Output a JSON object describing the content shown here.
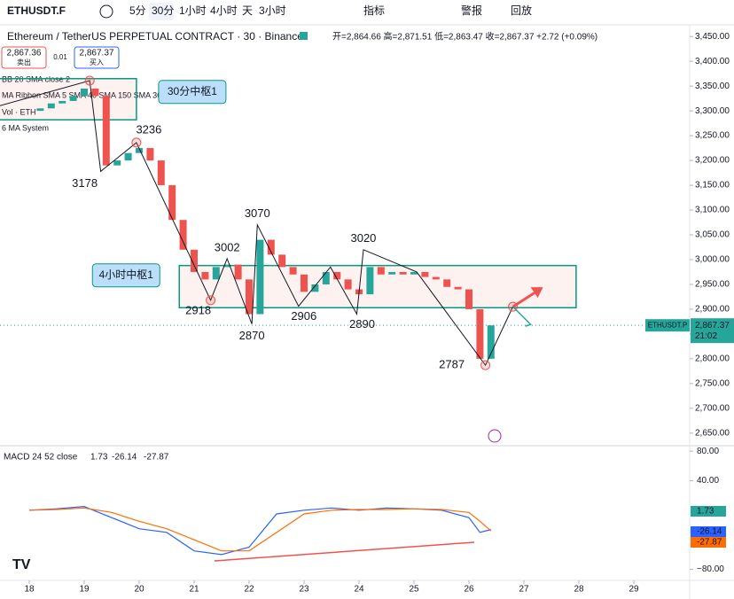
{
  "toolbar": {
    "symbol": "ETHUSDT.F",
    "intervals": [
      "5分",
      "30分",
      "1小时",
      "4小时",
      "天",
      "3小时"
    ],
    "indicators": "指标",
    "alert": "警报",
    "replay": "回放"
  },
  "legend": {
    "name": "Ethereum / TetherUS PERPETUAL CONTRACT · 30 · Binance",
    "ohlc": "开=2,864.66 高=2,871.51 低=2,863.47 收=2,867.37 +2.72 (+0.09%)",
    "sell_price": "2,867.36",
    "sell": "卖出",
    "spread": "0.01",
    "buy_price": "2,867.37",
    "buy": "买入",
    "studies": [
      "BB 20 SMA close 2",
      "MA Ribbon SMA 5 SMA 40 SMA 150 SMA 360",
      "Vol · ETH",
      "6 MA System"
    ]
  },
  "chart_data": {
    "type": "candlestick",
    "x": [
      18.0,
      18.2,
      18.4,
      18.6,
      18.8,
      19.0,
      19.2,
      19.4,
      19.6,
      19.8,
      20.0,
      20.2,
      20.4,
      20.6,
      20.8,
      21.0,
      21.2,
      21.4,
      21.6,
      21.8,
      22.0,
      22.2,
      22.4,
      22.6,
      22.8,
      23.0,
      23.2,
      23.4,
      23.6,
      23.8,
      24.0,
      24.2,
      24.4,
      24.6,
      24.8,
      25.0,
      25.2,
      25.4,
      25.6,
      25.8,
      26.0,
      26.2,
      26.4
    ],
    "close": [
      3300,
      3305,
      3315,
      3320,
      3330,
      3345,
      3330,
      3190,
      3200,
      3215,
      3225,
      3200,
      3150,
      3080,
      3020,
      2975,
      2960,
      2985,
      2990,
      2960,
      2890,
      3040,
      3010,
      2985,
      2970,
      2935,
      2950,
      2975,
      2960,
      2940,
      2930,
      2985,
      2970,
      2975,
      2970,
      2975,
      2965,
      2960,
      2945,
      2940,
      2900,
      2800,
      2867.37
    ],
    "up_color": "#26a69a",
    "down_color": "#ef5350",
    "ylim": [
      2630,
      3470
    ],
    "yticks": [
      {
        "value": 3450,
        "label": "3,450.00"
      },
      {
        "value": 3400,
        "label": "3,400.00"
      },
      {
        "value": 3350,
        "label": "3,350.00"
      },
      {
        "value": 3300,
        "label": "3,300.00"
      },
      {
        "value": 3250,
        "label": "3,250.00"
      },
      {
        "value": 3200,
        "label": "3,200.00"
      },
      {
        "value": 3150,
        "label": "3,150.00"
      },
      {
        "value": 3100,
        "label": "3,100.00"
      },
      {
        "value": 3050,
        "label": "3,050.00"
      },
      {
        "value": 3000,
        "label": "3,000.00"
      },
      {
        "value": 2950,
        "label": "2,950.00"
      },
      {
        "value": 2900,
        "label": "2,900.00"
      },
      {
        "value": 2850,
        "label": "2,850.00"
      },
      {
        "value": 2800,
        "label": "2,800.00"
      },
      {
        "value": 2750,
        "label": "2,750.00"
      },
      {
        "value": 2700,
        "label": "2,700.00"
      },
      {
        "value": 2650,
        "label": "2,650.00"
      }
    ],
    "xticks": [
      18,
      19,
      20,
      21,
      22,
      23,
      24,
      25,
      26,
      27,
      28,
      29
    ],
    "last_price": {
      "symbol": "ETHUSDT.P",
      "value": 2867.37,
      "label": "2,867.37",
      "time": "21:02"
    },
    "zigzag": {
      "x": [
        17.45,
        19.1,
        19.3,
        19.95,
        21.3,
        21.6,
        22.05,
        22.15,
        22.9,
        23.48,
        23.96,
        24.08,
        25.05,
        26.3,
        26.8
      ],
      "values": [
        3310,
        3361,
        3178,
        3236,
        2918,
        3002,
        2870,
        3070,
        2906,
        2985,
        2890,
        3020,
        2975,
        2787,
        2905
      ]
    },
    "zones": [
      {
        "label": "30分中枢1",
        "x": [
          17.45,
          19.95
        ],
        "y": [
          3282,
          3365
        ]
      },
      {
        "label": "4小时中枢1",
        "x": [
          20.73,
          27.95
        ],
        "y": [
          2903,
          2988
        ]
      }
    ],
    "macd": {
      "title": "MACD 24 52 close",
      "hist_label": "1.73",
      "macd_label": "-26.14",
      "signal_label": "-27.87",
      "ylim": [
        -95,
        85
      ],
      "yticks": [
        {
          "value": 80,
          "label": "80.00"
        },
        {
          "value": 40,
          "label": "40.00"
        },
        {
          "value": -80,
          "label": "−80.00"
        }
      ],
      "x": [
        18,
        18.5,
        19,
        19.5,
        20,
        20.5,
        21,
        21.5,
        22,
        22.5,
        23,
        23.5,
        24,
        24.5,
        25,
        25.5,
        26,
        26.2,
        26.4
      ],
      "series": [
        {
          "name": "MACD",
          "color": "#2962ff",
          "values": [
            0,
            2,
            5,
            -10,
            -25,
            -30,
            -55,
            -60,
            -50,
            -5,
            0,
            3,
            0,
            3,
            2,
            0,
            -10,
            -30,
            -26.14
          ]
        },
        {
          "name": "Signal",
          "color": "#ff6d00",
          "values": [
            0,
            1,
            3,
            -3,
            -15,
            -25,
            -40,
            -55,
            -55,
            -30,
            -5,
            0,
            1,
            1,
            2,
            1,
            -3,
            -15,
            -27.87
          ]
        }
      ]
    }
  }
}
